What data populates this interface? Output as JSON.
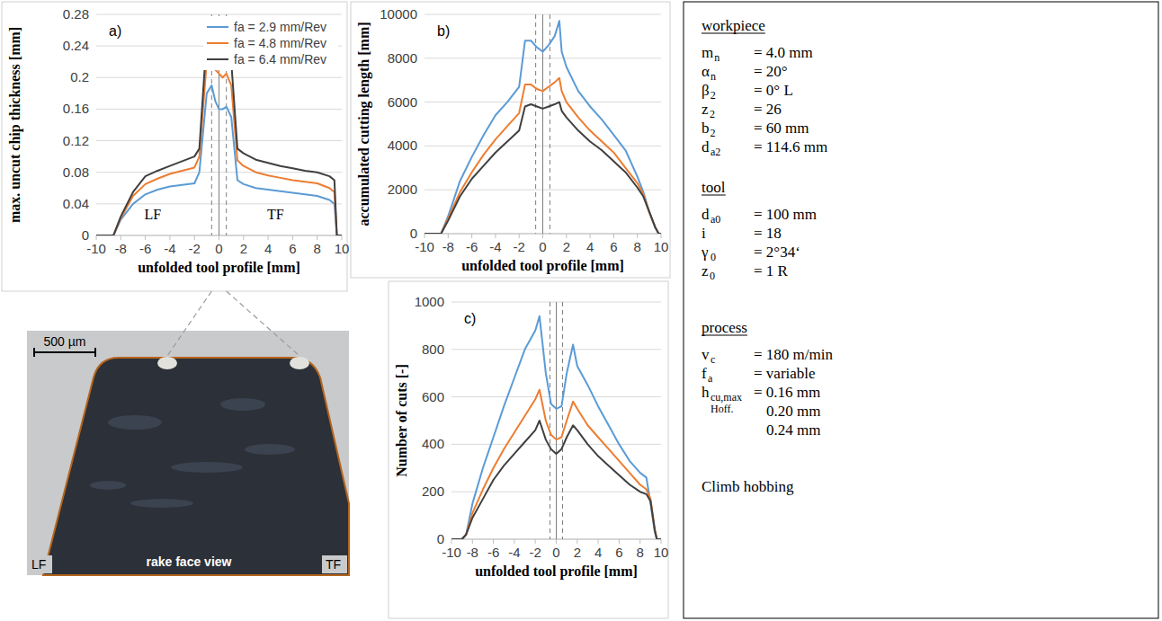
{
  "chart_data": [
    {
      "type": "line",
      "panel": "a)",
      "xlabel": "unfolded tool profile [mm]",
      "ylabel": "max. uncut chip thickness [mm]",
      "x": [
        -10,
        -9,
        -8.6,
        -8,
        -7,
        -6,
        -5,
        -4,
        -3,
        -2,
        -1.6,
        -1,
        -0.6,
        -0.3,
        0,
        0.3,
        0.6,
        1,
        1.5,
        2,
        3,
        4,
        5,
        6,
        7,
        8,
        9,
        9.4,
        9.6,
        10
      ],
      "xlim": [
        -10,
        10
      ],
      "xticks": [
        -10,
        -8,
        -6,
        -4,
        -2,
        0,
        2,
        4,
        6,
        8,
        10
      ],
      "ylim": [
        0,
        0.28
      ],
      "yticks": [
        0,
        0.04,
        0.08,
        0.12,
        0.16,
        0.2,
        0.24,
        0.28
      ],
      "grid": true,
      "legend": "upper right",
      "series": [
        {
          "name": "fa = 2.9 mm/Rev",
          "color": "#5b9bd5",
          "values": [
            0,
            0,
            0,
            0.02,
            0.04,
            0.052,
            0.058,
            0.062,
            0.064,
            0.066,
            0.08,
            0.18,
            0.19,
            0.17,
            0.16,
            0.16,
            0.163,
            0.15,
            0.07,
            0.065,
            0.06,
            0.058,
            0.056,
            0.054,
            0.052,
            0.05,
            0.045,
            0.04,
            0,
            0
          ]
        },
        {
          "name": "fa = 4.8 mm/Rev",
          "color": "#ed7d31",
          "values": [
            0,
            0,
            0,
            0.022,
            0.05,
            0.065,
            0.072,
            0.078,
            0.082,
            0.086,
            0.1,
            0.22,
            0.238,
            0.21,
            0.205,
            0.2,
            0.205,
            0.19,
            0.095,
            0.088,
            0.08,
            0.076,
            0.073,
            0.07,
            0.068,
            0.066,
            0.06,
            0.055,
            0,
            0
          ]
        },
        {
          "name": "fa = 6.4 mm/Rev",
          "color": "#404040",
          "values": [
            0,
            0,
            0,
            0.024,
            0.055,
            0.075,
            0.082,
            0.088,
            0.094,
            0.1,
            0.11,
            0.25,
            0.267,
            0.24,
            0.236,
            0.232,
            0.235,
            0.22,
            0.11,
            0.104,
            0.096,
            0.092,
            0.088,
            0.085,
            0.082,
            0.08,
            0.075,
            0.07,
            0,
            0
          ]
        }
      ],
      "vlines": [
        {
          "value": -0.6,
          "line_style": "dashed"
        },
        {
          "value": 0,
          "line_style": "solid"
        },
        {
          "value": 0.6,
          "line_style": "dashed"
        }
      ],
      "annotations": [
        {
          "text": "LF",
          "x": -5.4,
          "y": 0.02
        },
        {
          "text": "TF",
          "x": 4.6,
          "y": 0.02
        }
      ]
    },
    {
      "type": "line",
      "panel": "b)",
      "xlabel": "unfolded tool profile [mm]",
      "ylabel": "accumulated cutting length [mm]",
      "x": [
        -10,
        -9,
        -8.6,
        -8,
        -7,
        -6,
        -5,
        -4,
        -3,
        -2,
        -1.5,
        -1,
        -0.5,
        0,
        0.5,
        1,
        1.4,
        1.6,
        2,
        3,
        4,
        5,
        6,
        7,
        8,
        8.5,
        9,
        9.5,
        9.8,
        10
      ],
      "xlim": [
        -10,
        10
      ],
      "xticks": [
        -10,
        -8,
        -6,
        -4,
        -2,
        0,
        2,
        4,
        6,
        8,
        10
      ],
      "ylim": [
        0,
        10000
      ],
      "yticks": [
        0,
        2000,
        4000,
        6000,
        8000,
        10000
      ],
      "grid": true,
      "series": [
        {
          "color": "#5b9bd5",
          "values": [
            0,
            0,
            0,
            800,
            2400,
            3500,
            4500,
            5400,
            6000,
            6700,
            8800,
            8800,
            8500,
            8300,
            8600,
            9000,
            9700,
            8300,
            7600,
            6500,
            5800,
            5200,
            4500,
            3800,
            2600,
            1900,
            1000,
            300,
            0,
            0
          ]
        },
        {
          "color": "#ed7d31",
          "values": [
            0,
            0,
            0,
            700,
            1900,
            2800,
            3600,
            4300,
            4900,
            5500,
            6800,
            6800,
            6600,
            6500,
            6700,
            6900,
            7100,
            6500,
            6000,
            5300,
            4700,
            4200,
            3700,
            3000,
            2300,
            1800,
            1000,
            300,
            0,
            0
          ]
        },
        {
          "color": "#404040",
          "values": [
            0,
            0,
            0,
            600,
            1700,
            2500,
            3100,
            3700,
            4200,
            4700,
            5800,
            5900,
            5800,
            5700,
            5800,
            5900,
            6000,
            5600,
            5300,
            4700,
            4200,
            3800,
            3300,
            2800,
            2100,
            1700,
            1000,
            300,
            0,
            0
          ]
        }
      ],
      "vlines": [
        {
          "value": -0.6,
          "line_style": "dashed"
        },
        {
          "value": 0,
          "line_style": "solid"
        },
        {
          "value": 0.6,
          "line_style": "dashed"
        }
      ]
    },
    {
      "type": "line",
      "panel": "c)",
      "xlabel": "unfolded tool profile [mm]",
      "ylabel": "Number of cuts [-]",
      "x": [
        -10,
        -9,
        -8.6,
        -8,
        -7,
        -6,
        -5,
        -4,
        -3,
        -2,
        -1.6,
        -1,
        -0.5,
        0,
        0.5,
        1,
        1.6,
        2,
        3,
        4,
        5,
        6,
        7,
        8,
        8.6,
        9,
        9.4,
        9.6,
        10
      ],
      "xlim": [
        -10,
        10
      ],
      "xticks": [
        -10,
        -8,
        -6,
        -4,
        -2,
        0,
        2,
        4,
        6,
        8,
        10
      ],
      "ylim": [
        0,
        1000
      ],
      "yticks": [
        0,
        200,
        400,
        600,
        800,
        1000
      ],
      "grid": true,
      "series": [
        {
          "color": "#5b9bd5",
          "values": [
            0,
            0,
            20,
            150,
            300,
            430,
            560,
            680,
            800,
            880,
            940,
            700,
            570,
            550,
            560,
            700,
            820,
            730,
            650,
            560,
            480,
            400,
            330,
            280,
            260,
            150,
            30,
            0,
            0
          ]
        },
        {
          "color": "#ed7d31",
          "values": [
            0,
            0,
            20,
            110,
            210,
            300,
            380,
            450,
            520,
            590,
            630,
            500,
            440,
            420,
            430,
            500,
            580,
            550,
            480,
            430,
            380,
            330,
            280,
            230,
            210,
            170,
            40,
            0,
            0
          ]
        },
        {
          "color": "#404040",
          "values": [
            0,
            0,
            20,
            90,
            170,
            250,
            310,
            360,
            410,
            460,
            500,
            420,
            380,
            360,
            380,
            430,
            480,
            460,
            400,
            350,
            310,
            270,
            230,
            200,
            190,
            160,
            40,
            0,
            0
          ]
        }
      ],
      "vlines": [
        {
          "value": -0.6,
          "line_style": "dashed"
        },
        {
          "value": 0,
          "line_style": "solid"
        },
        {
          "value": 0.6,
          "line_style": "dashed"
        }
      ]
    }
  ],
  "photo": {
    "scale_bar": "500 µm",
    "left": "LF",
    "right": "TF",
    "caption": "rake face view"
  },
  "parameters": {
    "sections": [
      {
        "title": "workpiece",
        "rows": [
          {
            "symbol": "m",
            "sub": "n",
            "value": "= 4.0 mm"
          },
          {
            "symbol": "α",
            "sub": "n",
            "value": "= 20°"
          },
          {
            "symbol": "β",
            "sub": "2",
            "value": "= 0° L"
          },
          {
            "symbol": "z",
            "sub": "2",
            "value": "= 26"
          },
          {
            "symbol": "b",
            "sub": "2",
            "value": "= 60  mm"
          },
          {
            "symbol": "d",
            "sub": "a2",
            "value": "= 114.6 mm"
          }
        ]
      },
      {
        "title": "tool",
        "rows": [
          {
            "symbol": "d",
            "sub": "a0",
            "value": "= 100 mm"
          },
          {
            "symbol": "i",
            "value": "= 18"
          },
          {
            "symbol": "γ",
            "sub": "0",
            "value": "= 2°34‘"
          },
          {
            "symbol": "z",
            "sub": "0",
            "value": "= 1 R"
          }
        ]
      },
      {
        "title": "process",
        "rows": [
          {
            "symbol": "v",
            "sub": "c",
            "value": "= 180 m/min"
          },
          {
            "symbol": "f",
            "sub": "a",
            "value": "=  variable"
          },
          {
            "symbol": "h",
            "sub": "cu,max",
            "sub2": "Hoff.",
            "values": [
              "= 0.16 mm",
              "0.20 mm",
              "0.24 mm"
            ]
          }
        ]
      }
    ],
    "footer": "Climb hobbing"
  }
}
